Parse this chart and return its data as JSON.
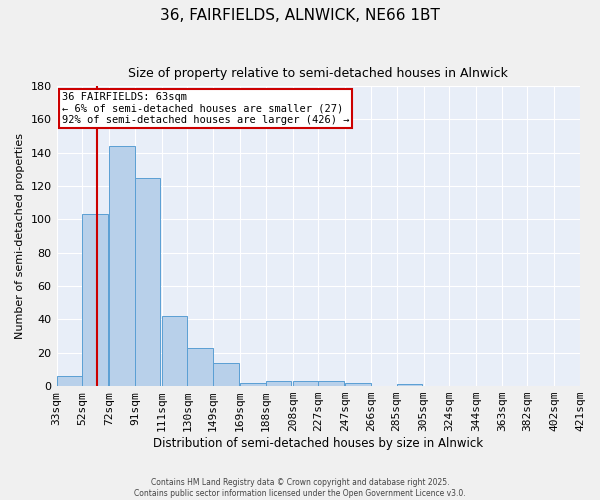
{
  "title": "36, FAIRFIELDS, ALNWICK, NE66 1BT",
  "subtitle": "Size of property relative to semi-detached houses in Alnwick",
  "xlabel": "Distribution of semi-detached houses by size in Alnwick",
  "ylabel": "Number of semi-detached properties",
  "bar_color": "#b8d0ea",
  "bar_edge_color": "#5a9fd4",
  "background_color": "#e8eef8",
  "grid_color": "#ffffff",
  "red_line_color": "#cc0000",
  "annotation_box_edge": "#cc0000",
  "annotation_box_face": "#ffffff",
  "ann_line1": "36 FAIRFIELDS: 63sqm",
  "ann_line2": "← 6% of semi-detached houses are smaller (27)",
  "ann_line3": "92% of semi-detached houses are larger (426) →",
  "bins": [
    33,
    52,
    72,
    91,
    111,
    130,
    149,
    169,
    188,
    208,
    227,
    247,
    266,
    285,
    305,
    324,
    344,
    363,
    382,
    402,
    421
  ],
  "counts": [
    6,
    103,
    144,
    125,
    42,
    23,
    14,
    2,
    3,
    3,
    3,
    2,
    0,
    1,
    0,
    0,
    0,
    0,
    0,
    0
  ],
  "tick_labels": [
    "33sqm",
    "52sqm",
    "72sqm",
    "91sqm",
    "111sqm",
    "130sqm",
    "149sqm",
    "169sqm",
    "188sqm",
    "208sqm",
    "227sqm",
    "247sqm",
    "266sqm",
    "285sqm",
    "305sqm",
    "324sqm",
    "344sqm",
    "363sqm",
    "382sqm",
    "402sqm",
    "421sqm"
  ],
  "ylim": [
    0,
    180
  ],
  "yticks": [
    0,
    20,
    40,
    60,
    80,
    100,
    120,
    140,
    160,
    180
  ],
  "red_line_x": 63,
  "footer_line1": "Contains HM Land Registry data © Crown copyright and database right 2025.",
  "footer_line2": "Contains public sector information licensed under the Open Government Licence v3.0."
}
